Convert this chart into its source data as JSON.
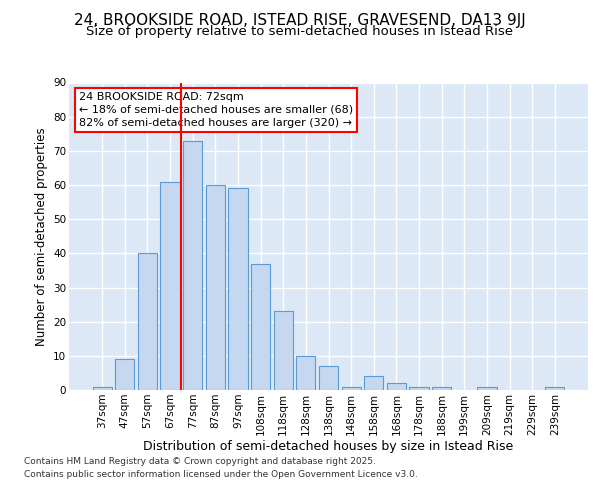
{
  "title1": "24, BROOKSIDE ROAD, ISTEAD RISE, GRAVESEND, DA13 9JJ",
  "title2": "Size of property relative to semi-detached houses in Istead Rise",
  "xlabel": "Distribution of semi-detached houses by size in Istead Rise",
  "ylabel": "Number of semi-detached properties",
  "categories": [
    "37sqm",
    "47sqm",
    "57sqm",
    "67sqm",
    "77sqm",
    "87sqm",
    "97sqm",
    "108sqm",
    "118sqm",
    "128sqm",
    "138sqm",
    "148sqm",
    "158sqm",
    "168sqm",
    "178sqm",
    "188sqm",
    "199sqm",
    "209sqm",
    "219sqm",
    "229sqm",
    "239sqm"
  ],
  "values": [
    1,
    9,
    40,
    61,
    73,
    60,
    59,
    37,
    23,
    10,
    7,
    1,
    4,
    2,
    1,
    1,
    0,
    1,
    0,
    0,
    1
  ],
  "bar_color": "#c5d8f0",
  "bar_edge_color": "#5b9bd5",
  "red_line_index": 4,
  "annotation_title": "24 BROOKSIDE ROAD: 72sqm",
  "annotation_smaller": "← 18% of semi-detached houses are smaller (68)",
  "annotation_larger": "82% of semi-detached houses are larger (320) →",
  "footer1": "Contains HM Land Registry data © Crown copyright and database right 2025.",
  "footer2": "Contains public sector information licensed under the Open Government Licence v3.0.",
  "ylim": [
    0,
    90
  ],
  "yticks": [
    0,
    10,
    20,
    30,
    40,
    50,
    60,
    70,
    80,
    90
  ],
  "fig_bg_color": "#ffffff",
  "plot_bg_color": "#dce8f5",
  "grid_color": "#ffffff",
  "title_fontsize": 11,
  "subtitle_fontsize": 9.5,
  "ylabel_fontsize": 8.5,
  "xlabel_fontsize": 9,
  "tick_fontsize": 7.5,
  "footer_fontsize": 6.5,
  "ann_fontsize": 8
}
